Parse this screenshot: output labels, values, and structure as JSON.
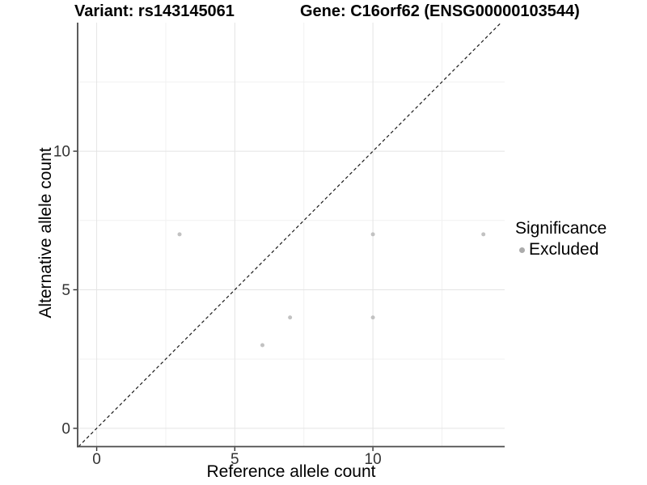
{
  "chart_data": {
    "type": "scatter",
    "title_left": "Variant: rs143145061",
    "title_right": "Gene: C16orf62 (ENSG00000103544)",
    "xlabel": "Reference allele count",
    "ylabel": "Alternative allele count",
    "xlim": [
      -0.69,
      14.77
    ],
    "ylim": [
      -0.66,
      14.64
    ],
    "x_major_ticks": [
      0,
      5,
      10
    ],
    "y_major_ticks": [
      0,
      5,
      10
    ],
    "x_minor_ticks": [
      2.5,
      7.5,
      12.5
    ],
    "y_minor_ticks": [
      2.5,
      7.5,
      12.5
    ],
    "grid": true,
    "reference_line": {
      "type": "identity",
      "style": "dashed",
      "color": "#1a1a1a"
    },
    "series": [
      {
        "name": "Excluded",
        "color": "#c2c2c2",
        "points": [
          {
            "x": 3,
            "y": 7
          },
          {
            "x": 6,
            "y": 3
          },
          {
            "x": 7,
            "y": 4
          },
          {
            "x": 10,
            "y": 4
          },
          {
            "x": 10,
            "y": 7
          },
          {
            "x": 14,
            "y": 7
          }
        ]
      }
    ],
    "legend": {
      "title": "Significance",
      "position": "right",
      "entries": [
        {
          "label": "Excluded",
          "color": "#ababab"
        }
      ]
    }
  },
  "colors": {
    "background": "#ffffff",
    "grid_major": "#e4e4e4",
    "grid_minor": "#f1f1f1",
    "axis_line": "#4a4a4a",
    "tick_mark": "#333333",
    "tick_label": "#333333"
  }
}
